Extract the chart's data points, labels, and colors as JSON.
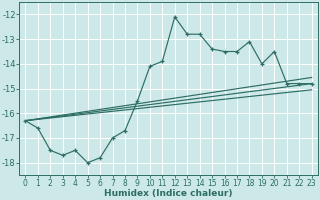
{
  "xlabel": "Humidex (Indice chaleur)",
  "ylabel": "",
  "bg_color": "#cce8e8",
  "grid_color": "#ffffff",
  "line_color": "#2e6e62",
  "xlim": [
    -0.5,
    23.5
  ],
  "ylim": [
    -18.5,
    -11.5
  ],
  "xticks": [
    0,
    1,
    2,
    3,
    4,
    5,
    6,
    7,
    8,
    9,
    10,
    11,
    12,
    13,
    14,
    15,
    16,
    17,
    18,
    19,
    20,
    21,
    22,
    23
  ],
  "yticks": [
    -18,
    -17,
    -16,
    -15,
    -14,
    -13,
    -12
  ],
  "main_x": [
    0,
    1,
    2,
    3,
    4,
    5,
    6,
    7,
    8,
    9,
    10,
    11,
    12,
    13,
    14,
    15,
    16,
    17,
    18,
    19,
    20,
    21,
    22,
    23
  ],
  "main_y": [
    -16.3,
    -16.6,
    -17.5,
    -17.7,
    -17.5,
    -18.0,
    -17.8,
    -17.0,
    -16.7,
    -15.5,
    -14.1,
    -13.9,
    -12.1,
    -12.8,
    -12.8,
    -13.4,
    -13.5,
    -13.5,
    -13.1,
    -14.0,
    -13.5,
    -14.8,
    -14.8,
    -14.8
  ],
  "line1_x": [
    0,
    23
  ],
  "line1_y": [
    -16.3,
    -14.8
  ],
  "line2_x": [
    0,
    23
  ],
  "line2_y": [
    -16.3,
    -15.05
  ],
  "line3_x": [
    0,
    23
  ],
  "line3_y": [
    -16.3,
    -14.55
  ],
  "xlabel_fontsize": 6.5,
  "tick_fontsize": 5.5,
  "linewidth": 0.85
}
